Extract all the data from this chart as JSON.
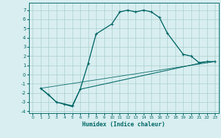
{
  "xlabel": "Humidex (Indice chaleur)",
  "bg_color": "#d8eef0",
  "grid_color": "#aacccc",
  "line_color": "#006666",
  "xlim": [
    -0.5,
    23.5
  ],
  "ylim": [
    -4.2,
    7.8
  ],
  "xticks": [
    0,
    1,
    2,
    3,
    4,
    5,
    6,
    7,
    8,
    9,
    10,
    11,
    12,
    13,
    14,
    15,
    16,
    17,
    18,
    19,
    20,
    21,
    22,
    23
  ],
  "yticks": [
    -4,
    -3,
    -2,
    -1,
    0,
    1,
    2,
    3,
    4,
    5,
    6,
    7
  ],
  "series": [
    {
      "x": [
        1,
        2,
        3,
        4,
        5,
        6,
        7,
        8,
        10,
        11,
        12,
        13,
        14,
        15,
        16,
        17,
        19,
        20,
        21,
        22,
        23
      ],
      "y": [
        -1.5,
        -2.2,
        -3.0,
        -3.2,
        -3.4,
        -1.6,
        1.2,
        4.4,
        5.5,
        6.8,
        7.0,
        6.8,
        7.0,
        6.8,
        6.2,
        4.5,
        2.2,
        2.0,
        1.3,
        1.4,
        1.4
      ],
      "marker": "+",
      "linestyle": "-",
      "linewidth": 1.0
    },
    {
      "x": [
        1,
        2,
        3,
        5,
        6,
        22,
        23
      ],
      "y": [
        -1.5,
        -2.2,
        -3.0,
        -3.5,
        -1.6,
        1.4,
        1.4
      ],
      "marker": null,
      "linestyle": "-",
      "linewidth": 0.7
    },
    {
      "x": [
        1,
        3,
        5,
        6,
        22,
        23
      ],
      "y": [
        -1.5,
        -3.0,
        -3.5,
        -1.6,
        1.4,
        1.4
      ],
      "marker": null,
      "linestyle": "dotted",
      "linewidth": 0.7
    },
    {
      "x": [
        1,
        23
      ],
      "y": [
        -1.5,
        1.4
      ],
      "marker": null,
      "linestyle": "-",
      "linewidth": 0.6
    }
  ]
}
